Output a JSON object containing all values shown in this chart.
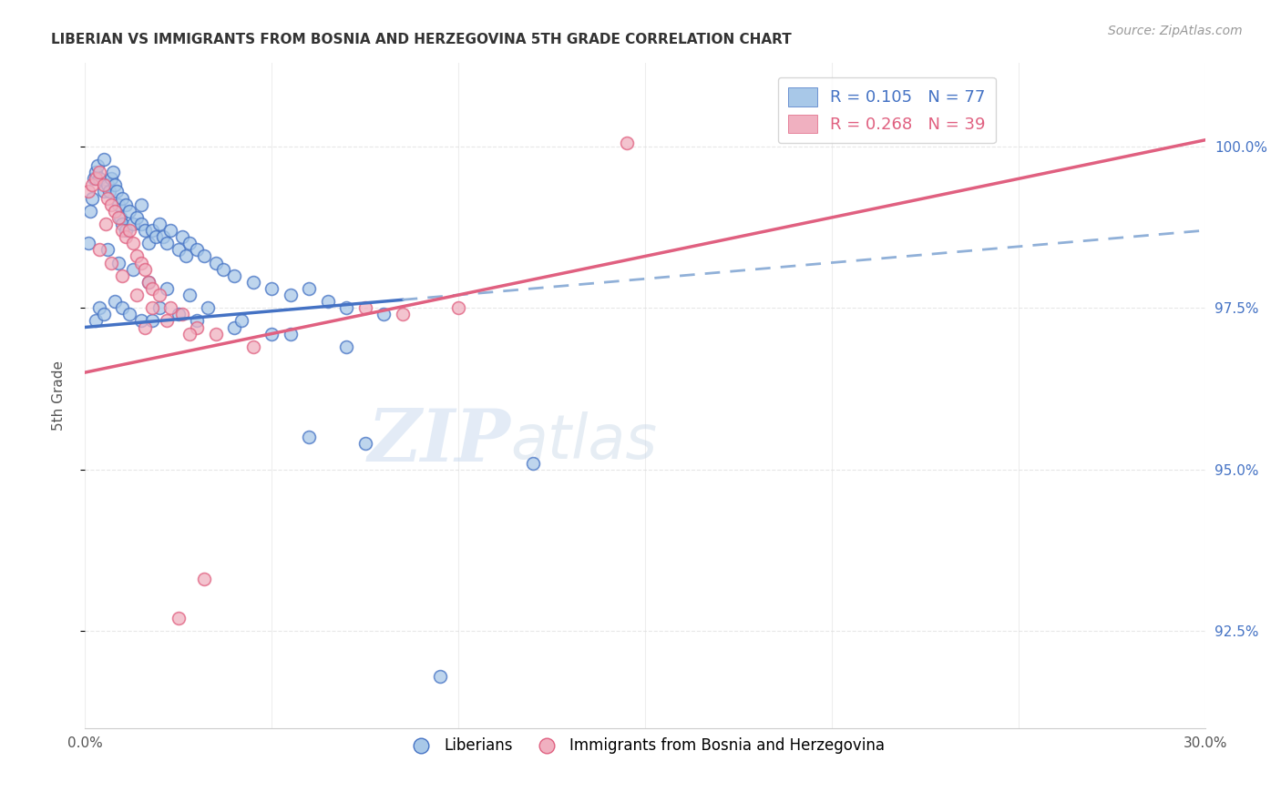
{
  "title": "LIBERIAN VS IMMIGRANTS FROM BOSNIA AND HERZEGOVINA 5TH GRADE CORRELATION CHART",
  "source": "Source: ZipAtlas.com",
  "ylabel": "5th Grade",
  "ytick_values": [
    92.5,
    95.0,
    97.5,
    100.0
  ],
  "xlim": [
    0.0,
    30.0
  ],
  "ylim": [
    91.0,
    101.3
  ],
  "legend_blue_r": "R = 0.105",
  "legend_blue_n": "N = 77",
  "legend_pink_r": "R = 0.268",
  "legend_pink_n": "N = 39",
  "legend_label_blue": "Liberians",
  "legend_label_pink": "Immigrants from Bosnia and Herzegovina",
  "blue_color": "#a8c8e8",
  "pink_color": "#f0b0c0",
  "blue_line_color": "#4472c4",
  "pink_line_color": "#e06080",
  "blue_dash_color": "#90b0d8",
  "blue_scatter_x": [
    0.1,
    0.15,
    0.2,
    0.25,
    0.3,
    0.35,
    0.4,
    0.5,
    0.5,
    0.6,
    0.65,
    0.7,
    0.75,
    0.8,
    0.85,
    0.9,
    0.95,
    1.0,
    1.0,
    1.1,
    1.1,
    1.2,
    1.3,
    1.4,
    1.5,
    1.5,
    1.6,
    1.7,
    1.8,
    1.9,
    2.0,
    2.1,
    2.2,
    2.3,
    2.5,
    2.6,
    2.7,
    2.8,
    3.0,
    3.2,
    3.5,
    3.7,
    4.0,
    4.5,
    5.0,
    5.5,
    6.0,
    6.5,
    7.0,
    8.0,
    0.3,
    0.4,
    0.5,
    0.8,
    1.0,
    1.2,
    1.5,
    1.8,
    2.0,
    2.5,
    3.0,
    4.0,
    5.0,
    6.0,
    7.5,
    0.6,
    0.9,
    1.3,
    1.7,
    2.2,
    2.8,
    3.3,
    4.2,
    5.5,
    7.0,
    9.5,
    12.0
  ],
  "blue_scatter_y": [
    98.5,
    99.0,
    99.2,
    99.5,
    99.6,
    99.7,
    99.5,
    99.3,
    99.8,
    99.4,
    99.3,
    99.5,
    99.6,
    99.4,
    99.3,
    99.1,
    98.9,
    99.2,
    98.8,
    99.1,
    98.7,
    99.0,
    98.8,
    98.9,
    99.1,
    98.8,
    98.7,
    98.5,
    98.7,
    98.6,
    98.8,
    98.6,
    98.5,
    98.7,
    98.4,
    98.6,
    98.3,
    98.5,
    98.4,
    98.3,
    98.2,
    98.1,
    98.0,
    97.9,
    97.8,
    97.7,
    97.8,
    97.6,
    97.5,
    97.4,
    97.3,
    97.5,
    97.4,
    97.6,
    97.5,
    97.4,
    97.3,
    97.3,
    97.5,
    97.4,
    97.3,
    97.2,
    97.1,
    95.5,
    95.4,
    98.4,
    98.2,
    98.1,
    97.9,
    97.8,
    97.7,
    97.5,
    97.3,
    97.1,
    96.9,
    91.8,
    95.1
  ],
  "pink_scatter_x": [
    0.1,
    0.2,
    0.3,
    0.4,
    0.5,
    0.6,
    0.7,
    0.8,
    0.9,
    1.0,
    1.1,
    1.2,
    1.3,
    1.4,
    1.5,
    1.6,
    1.7,
    1.8,
    2.0,
    2.3,
    2.6,
    3.0,
    3.5,
    4.5,
    7.5,
    14.5,
    0.4,
    0.7,
    1.0,
    1.4,
    1.8,
    2.2,
    2.8,
    8.5,
    10.0,
    3.2,
    2.5,
    1.6,
    0.55
  ],
  "pink_scatter_y": [
    99.3,
    99.4,
    99.5,
    99.6,
    99.4,
    99.2,
    99.1,
    99.0,
    98.9,
    98.7,
    98.6,
    98.7,
    98.5,
    98.3,
    98.2,
    98.1,
    97.9,
    97.8,
    97.7,
    97.5,
    97.4,
    97.2,
    97.1,
    96.9,
    97.5,
    100.05,
    98.4,
    98.2,
    98.0,
    97.7,
    97.5,
    97.3,
    97.1,
    97.4,
    97.5,
    93.3,
    92.7,
    97.2,
    98.8
  ],
  "blue_trend_x0": 0.0,
  "blue_trend_y0": 97.2,
  "blue_trend_x1": 30.0,
  "blue_trend_y1": 98.7,
  "blue_solid_end": 8.5,
  "pink_trend_x0": 0.0,
  "pink_trend_y0": 96.5,
  "pink_trend_x1": 30.0,
  "pink_trend_y1": 100.1,
  "watermark_zip": "ZIP",
  "watermark_atlas": "atlas",
  "background_color": "#ffffff",
  "grid_color": "#dddddd"
}
